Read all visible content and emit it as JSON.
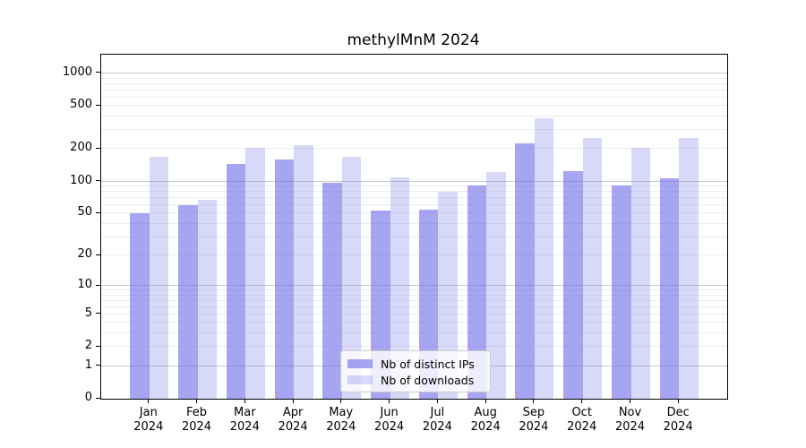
{
  "chart_data": {
    "type": "bar",
    "title": "methylMnM 2024",
    "categories": [
      "Jan 2024",
      "Feb 2024",
      "Mar 2024",
      "Apr 2024",
      "May 2024",
      "Jun 2024",
      "Jul 2024",
      "Aug 2024",
      "Sep 2024",
      "Oct 2024",
      "Nov 2024",
      "Dec 2024"
    ],
    "series": [
      {
        "name": "Nb of distinct IPs",
        "color": "rgba(110,110,232,0.62)",
        "solid_color": "#a5a5f0",
        "values": [
          50,
          60,
          145,
          160,
          97,
          53,
          55,
          92,
          225,
          125,
          92,
          108
        ]
      },
      {
        "name": "Nb of downloads",
        "color": "rgba(110,110,232,0.27)",
        "solid_color": "#d8d8f9",
        "values": [
          170,
          68,
          205,
          218,
          168,
          110,
          80,
          122,
          385,
          255,
          205,
          255
        ]
      }
    ],
    "xlabel": "",
    "ylabel": "",
    "yscale": "log1p",
    "ylim": [
      0,
      1450
    ],
    "yticks": [
      0,
      1,
      2,
      5,
      10,
      20,
      50,
      100,
      200,
      500,
      1000
    ],
    "grid": {
      "on": true,
      "major_values": [
        1,
        10,
        100,
        1000
      ],
      "minor_multiples": [
        2,
        3,
        4,
        5,
        6,
        7,
        8,
        9
      ],
      "minor_decades": [
        1,
        10,
        100
      ],
      "major_color": "#c9c9c9",
      "minor_color": "#ededed"
    },
    "legend": {
      "position": "lower center"
    }
  }
}
